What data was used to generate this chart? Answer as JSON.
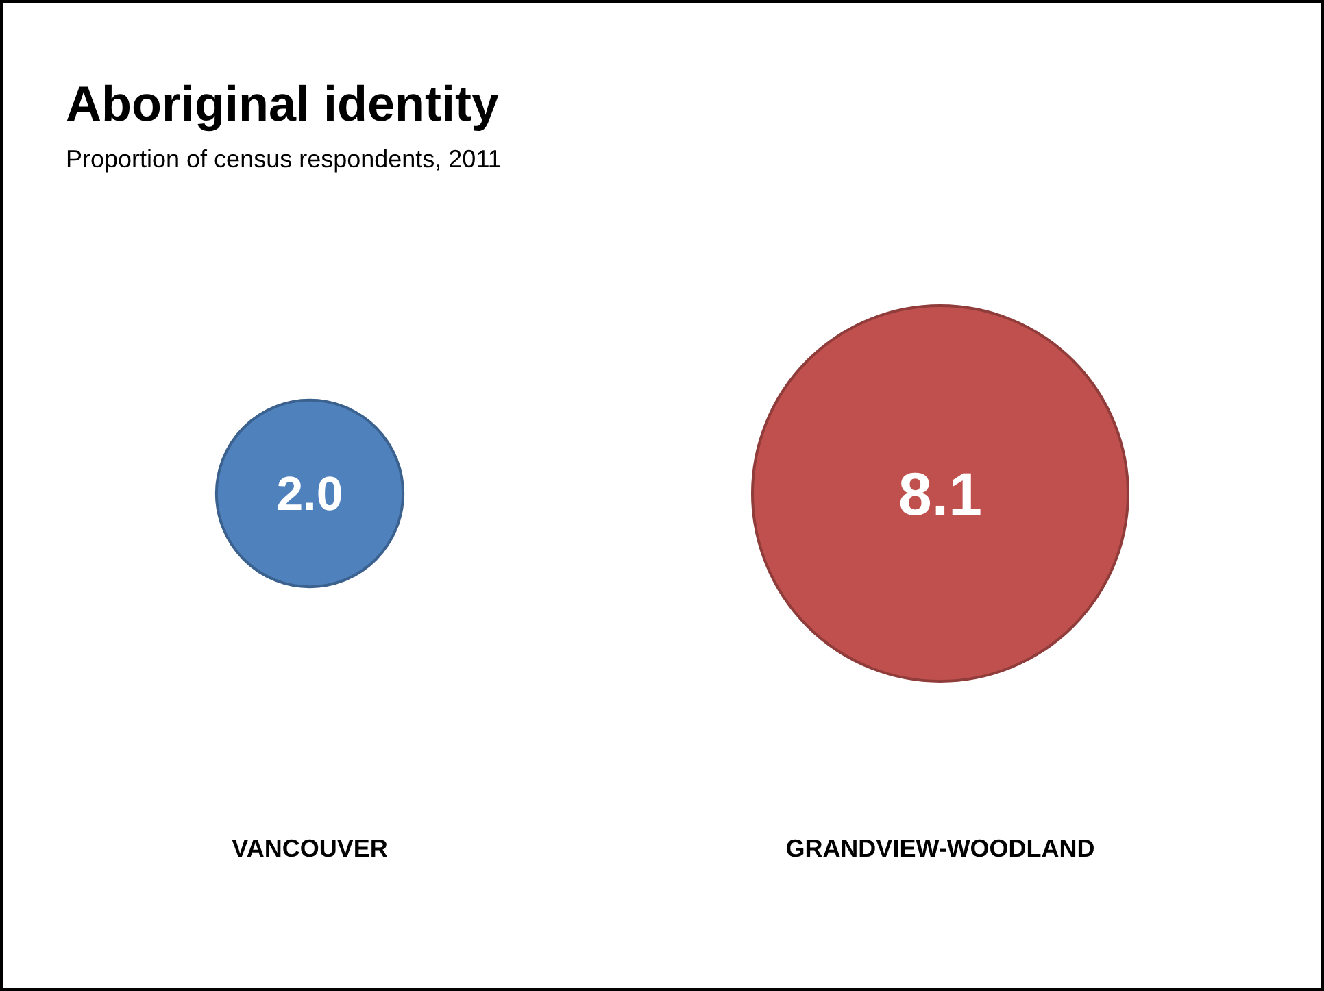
{
  "chart_data": {
    "type": "other",
    "title": "Aboriginal identity",
    "subtitle": "Proportion of census respondents, 2011",
    "categories": [
      "VANCOUVER",
      "GRANDVIEW-WOODLAND"
    ],
    "values": [
      2.0,
      8.1
    ],
    "value_labels": [
      "2.0",
      "8.1"
    ],
    "colors": [
      "#4f81bd",
      "#c0504d"
    ]
  }
}
